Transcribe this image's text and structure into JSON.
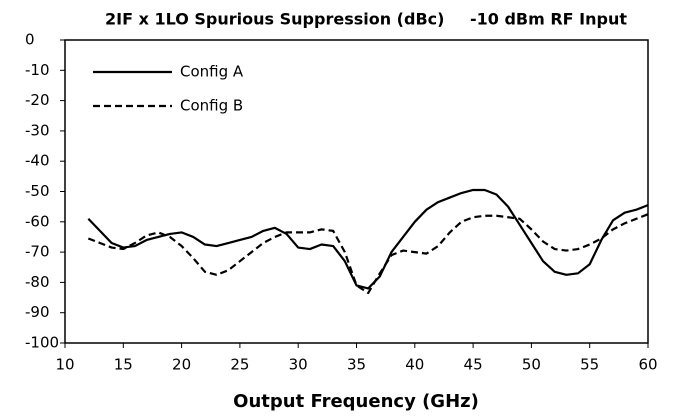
{
  "chart_data": {
    "type": "line",
    "title": "2IF x 1LO Spurious Suppression (dBc)",
    "subtitle": "-10 dBm RF Input",
    "x_label": "Output Frequency (GHz)",
    "x": [
      12,
      13,
      14,
      15,
      16,
      17,
      18,
      19,
      20,
      21,
      22,
      23,
      24,
      25,
      26,
      27,
      28,
      29,
      30,
      31,
      32,
      33,
      34,
      35,
      36,
      37,
      38,
      39,
      40,
      41,
      42,
      43,
      44,
      45,
      46,
      47,
      48,
      49,
      50,
      51,
      52,
      53,
      54,
      55,
      56,
      57,
      58,
      59,
      60
    ],
    "series": [
      {
        "name": "Config A",
        "color": "#000000",
        "dash": "solid",
        "values": [
          -59,
          -63,
          -67,
          -68.5,
          -68,
          -66,
          -65,
          -64,
          -63.5,
          -65,
          -67.5,
          -68,
          -67,
          -66,
          -65,
          -63,
          -62,
          -64,
          -68.5,
          -69,
          -67.5,
          -68,
          -73,
          -81,
          -82,
          -78,
          -70,
          -65,
          -60,
          -56,
          -53.5,
          -52,
          -50.5,
          -49.5,
          -49.5,
          -51,
          -55,
          -61,
          -67,
          -73,
          -76.5,
          -77.5,
          -77,
          -74,
          -66,
          -59.5,
          -57,
          -56,
          -54.5
        ]
      },
      {
        "name": "Config B",
        "color": "#000000",
        "dash": "dashed",
        "values": [
          -65.5,
          -67,
          -68.5,
          -69,
          -67,
          -64.5,
          -63.5,
          -65,
          -68,
          -72,
          -76.5,
          -77.5,
          -76,
          -73,
          -70,
          -67,
          -65,
          -63.5,
          -63.5,
          -63.5,
          -62.5,
          -63,
          -70,
          -81,
          -83.5,
          -77,
          -71,
          -69.5,
          -70,
          -70.5,
          -68,
          -63.5,
          -60,
          -58.5,
          -58,
          -58,
          -58.5,
          -59,
          -62.5,
          -66.5,
          -69,
          -69.5,
          -69,
          -67.5,
          -65.5,
          -62.5,
          -60.5,
          -59,
          -57.5
        ]
      }
    ],
    "xlim": [
      10,
      60
    ],
    "xticks": [
      10,
      15,
      20,
      25,
      30,
      35,
      40,
      45,
      50,
      55,
      60
    ],
    "ylim": [
      -100,
      0
    ],
    "yticks": [
      0,
      -10,
      -20,
      -30,
      -40,
      -50,
      -60,
      -70,
      -80,
      -90,
      -100
    ],
    "grid": false,
    "legend": "upper left"
  }
}
